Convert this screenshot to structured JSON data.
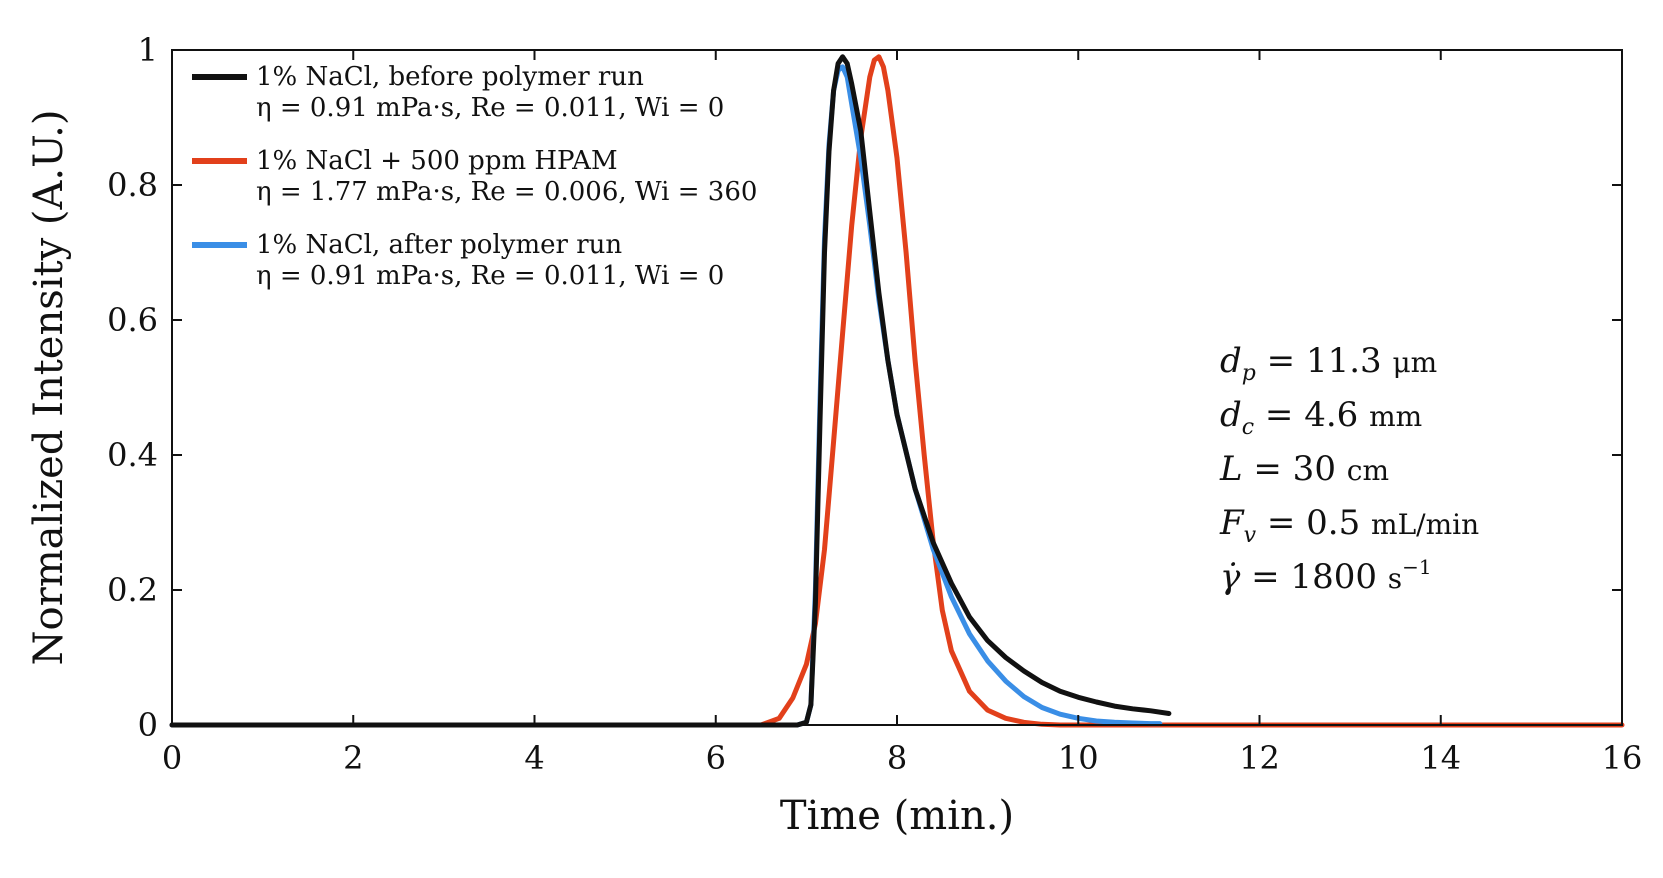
{
  "chart_data": {
    "type": "line",
    "xlabel": "Time (min.)",
    "ylabel": "Normalized Intensity (A.U.)",
    "xlim": [
      0,
      16
    ],
    "ylim": [
      0,
      1
    ],
    "xticks": [
      0,
      2,
      4,
      6,
      8,
      10,
      12,
      14,
      16
    ],
    "yticks": [
      0,
      0.2,
      0.4,
      0.6,
      0.8,
      1
    ],
    "xtick_labels": [
      "0",
      "2",
      "4",
      "6",
      "8",
      "10",
      "12",
      "14",
      "16"
    ],
    "ytick_labels": [
      "0",
      "0.2",
      "0.4",
      "0.6",
      "0.8",
      "1"
    ],
    "grid": false,
    "legend_position": "top-left",
    "series": [
      {
        "name": "1% NaCl, before polymer run",
        "params": "η = 0.91 mPa·s, Re = 0.011, Wi = 0",
        "color": "#111111",
        "x": [
          0,
          6.9,
          7.0,
          7.05,
          7.1,
          7.15,
          7.2,
          7.25,
          7.3,
          7.35,
          7.4,
          7.45,
          7.5,
          7.6,
          7.7,
          7.8,
          7.9,
          8.0,
          8.2,
          8.4,
          8.6,
          8.8,
          9.0,
          9.2,
          9.4,
          9.6,
          9.8,
          10.0,
          10.2,
          10.4,
          10.6,
          10.8,
          11.0
        ],
        "y": [
          0,
          0,
          0.004,
          0.03,
          0.18,
          0.45,
          0.7,
          0.85,
          0.94,
          0.98,
          0.99,
          0.98,
          0.95,
          0.88,
          0.76,
          0.64,
          0.54,
          0.46,
          0.35,
          0.27,
          0.21,
          0.16,
          0.125,
          0.1,
          0.08,
          0.063,
          0.05,
          0.041,
          0.034,
          0.028,
          0.024,
          0.021,
          0.017
        ]
      },
      {
        "name": "1% NaCl + 500 ppm HPAM",
        "params": "η = 1.77 mPa·s, Re = 0.006, Wi = 360",
        "color": "#e2401b",
        "x": [
          0,
          6.5,
          6.7,
          6.85,
          7.0,
          7.1,
          7.2,
          7.3,
          7.4,
          7.5,
          7.6,
          7.7,
          7.75,
          7.8,
          7.85,
          7.9,
          8.0,
          8.1,
          8.2,
          8.3,
          8.4,
          8.5,
          8.6,
          8.8,
          9.0,
          9.2,
          9.4,
          9.6,
          9.8,
          10.0,
          16.0
        ],
        "y": [
          0,
          0,
          0.01,
          0.04,
          0.09,
          0.15,
          0.26,
          0.42,
          0.58,
          0.74,
          0.87,
          0.96,
          0.985,
          0.99,
          0.975,
          0.94,
          0.84,
          0.7,
          0.54,
          0.4,
          0.27,
          0.17,
          0.11,
          0.05,
          0.022,
          0.01,
          0.004,
          0.001,
          0,
          0,
          0
        ]
      },
      {
        "name": "1% NaCl, after polymer run",
        "params": "η = 0.91 mPa·s, Re = 0.011, Wi = 0",
        "color": "#3a8ee6",
        "x": [
          0,
          6.9,
          7.0,
          7.05,
          7.1,
          7.15,
          7.2,
          7.25,
          7.3,
          7.35,
          7.4,
          7.45,
          7.5,
          7.6,
          7.7,
          7.8,
          7.9,
          8.0,
          8.2,
          8.4,
          8.6,
          8.8,
          9.0,
          9.2,
          9.4,
          9.6,
          9.8,
          10.0,
          10.2,
          10.4,
          10.6,
          10.8,
          10.9
        ],
        "y": [
          0,
          0,
          0.004,
          0.03,
          0.2,
          0.48,
          0.72,
          0.86,
          0.94,
          0.97,
          0.975,
          0.96,
          0.92,
          0.84,
          0.74,
          0.63,
          0.54,
          0.46,
          0.35,
          0.26,
          0.19,
          0.135,
          0.095,
          0.065,
          0.042,
          0.026,
          0.016,
          0.01,
          0.006,
          0.004,
          0.003,
          0.002,
          0.002
        ]
      }
    ],
    "annotations": [
      {
        "lhs": "d",
        "sub": "p",
        "rhs": " = 11.3 ",
        "unit": "μm",
        "sup": ""
      },
      {
        "lhs": "d",
        "sub": "c",
        "rhs": " = 4.6 ",
        "unit": "mm",
        "sup": ""
      },
      {
        "lhs": "L",
        "sub": "",
        "rhs": " = 30 ",
        "unit": "cm",
        "sup": ""
      },
      {
        "lhs": "F",
        "sub": "v",
        "rhs": " = 0.5 ",
        "unit": "mL/min",
        "sup": ""
      },
      {
        "lhs": "γ̇",
        "sub": "",
        "rhs": " = 1800 ",
        "unit": "s",
        "sup": "−1"
      }
    ]
  }
}
